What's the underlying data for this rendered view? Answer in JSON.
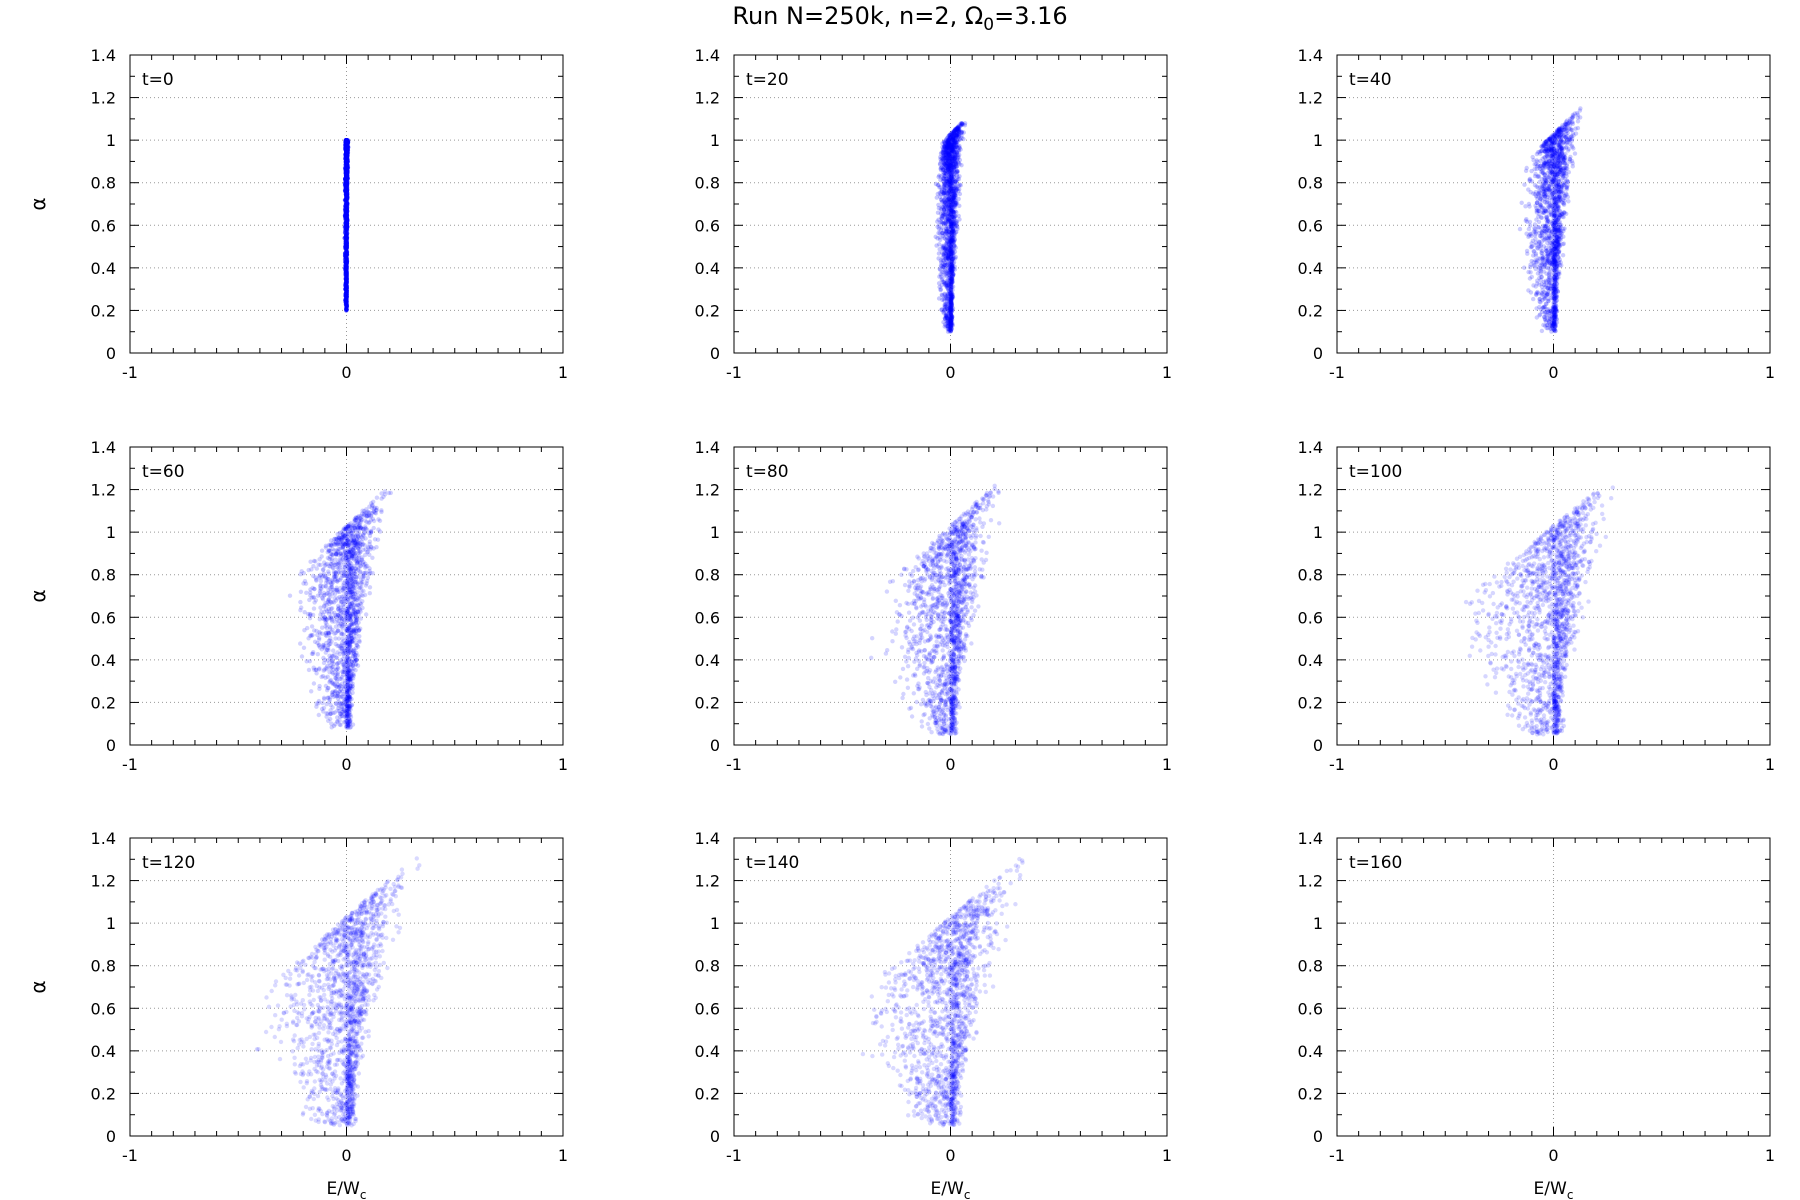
{
  "title": "Run N=250k, n=2, Ω₀=3.16",
  "title_parts": {
    "prefix": "Run N=250k, n=2, Ω",
    "sub": "0",
    "suffix": "=3.16"
  },
  "ylabel": "α",
  "xlabel": {
    "main": "E/W",
    "sub": "c"
  },
  "point_color": "#0000ff",
  "chart_data": [
    {
      "type": "scatter",
      "label": "t=0",
      "t": 0,
      "xlim": [
        -1,
        1
      ],
      "ylim": [
        0,
        1.4
      ],
      "x_ticks": [
        "-1",
        "0",
        "1"
      ],
      "y_ticks": [
        "0",
        "0.2",
        "0.4",
        "0.6",
        "0.8",
        "1",
        "1.2",
        "1.4"
      ],
      "grid": true,
      "spread_right": 0.01,
      "spread_left": 0.01,
      "alpha_min": 0.2,
      "alpha_max": 1.0,
      "n": 700,
      "opacity": 0.6
    },
    {
      "type": "scatter",
      "label": "t=20",
      "t": 20,
      "xlim": [
        -1,
        1
      ],
      "ylim": [
        0,
        1.4
      ],
      "x_ticks": [
        "-1",
        "0",
        "1"
      ],
      "y_ticks": [
        "0",
        "0.2",
        "0.4",
        "0.6",
        "0.8",
        "1",
        "1.2",
        "1.4"
      ],
      "grid": true,
      "spread_right": 0.08,
      "spread_left": 0.08,
      "alpha_min": 0.1,
      "alpha_max": 1.08,
      "n": 1600,
      "opacity": 0.22
    },
    {
      "type": "scatter",
      "label": "t=40",
      "t": 40,
      "xlim": [
        -1,
        1
      ],
      "ylim": [
        0,
        1.4
      ],
      "x_ticks": [
        "-1",
        "0",
        "1"
      ],
      "y_ticks": [
        "0",
        "0.2",
        "0.4",
        "0.6",
        "0.8",
        "1",
        "1.2",
        "1.4"
      ],
      "grid": true,
      "spread_right": 0.15,
      "spread_left": 0.17,
      "alpha_min": 0.1,
      "alpha_max": 1.15,
      "n": 1600,
      "opacity": 0.2
    },
    {
      "type": "scatter",
      "label": "t=60",
      "t": 60,
      "xlim": [
        -1,
        1
      ],
      "ylim": [
        0,
        1.4
      ],
      "x_ticks": [
        "-1",
        "0",
        "1"
      ],
      "y_ticks": [
        "0",
        "0.2",
        "0.4",
        "0.6",
        "0.8",
        "1",
        "1.2",
        "1.4"
      ],
      "grid": true,
      "spread_right": 0.23,
      "spread_left": 0.28,
      "alpha_min": 0.08,
      "alpha_max": 1.22,
      "n": 1600,
      "opacity": 0.18
    },
    {
      "type": "scatter",
      "label": "t=80",
      "t": 80,
      "xlim": [
        -1,
        1
      ],
      "ylim": [
        0,
        1.4
      ],
      "x_ticks": [
        "-1",
        "0",
        "1"
      ],
      "y_ticks": [
        "0",
        "0.2",
        "0.4",
        "0.6",
        "0.8",
        "1",
        "1.2",
        "1.4"
      ],
      "grid": true,
      "spread_right": 0.3,
      "spread_left": 0.4,
      "alpha_min": 0.05,
      "alpha_max": 1.28,
      "n": 1600,
      "opacity": 0.17
    },
    {
      "type": "scatter",
      "label": "t=100",
      "t": 100,
      "xlim": [
        -1,
        1
      ],
      "ylim": [
        0,
        1.4
      ],
      "x_ticks": [
        "-1",
        "0",
        "1"
      ],
      "y_ticks": [
        "0",
        "0.2",
        "0.4",
        "0.6",
        "0.8",
        "1",
        "1.2",
        "1.4"
      ],
      "grid": true,
      "spread_right": 0.36,
      "spread_left": 0.48,
      "alpha_min": 0.05,
      "alpha_max": 1.3,
      "n": 1600,
      "opacity": 0.16
    },
    {
      "type": "scatter",
      "label": "t=120",
      "t": 120,
      "xlim": [
        -1,
        1
      ],
      "ylim": [
        0,
        1.4
      ],
      "x_ticks": [
        "-1",
        "0",
        "1"
      ],
      "y_ticks": [
        "0",
        "0.2",
        "0.4",
        "0.6",
        "0.8",
        "1",
        "1.2",
        "1.4"
      ],
      "grid": true,
      "spread_right": 0.4,
      "spread_left": 0.48,
      "alpha_min": 0.05,
      "alpha_max": 1.36,
      "n": 1600,
      "opacity": 0.15
    },
    {
      "type": "scatter",
      "label": "t=140",
      "t": 140,
      "xlim": [
        -1,
        1
      ],
      "ylim": [
        0,
        1.4
      ],
      "x_ticks": [
        "-1",
        "0",
        "1"
      ],
      "y_ticks": [
        "0",
        "0.2",
        "0.4",
        "0.6",
        "0.8",
        "1",
        "1.2",
        "1.4"
      ],
      "grid": true,
      "spread_right": 0.42,
      "spread_left": 0.48,
      "alpha_min": 0.05,
      "alpha_max": 1.36,
      "n": 1600,
      "opacity": 0.15
    },
    {
      "type": "scatter",
      "label": "t=160",
      "t": 160,
      "xlim": [
        -1,
        1
      ],
      "ylim": [
        0,
        1.4
      ],
      "x_ticks": [
        "-1",
        "0",
        "1"
      ],
      "y_ticks": [
        "0",
        "0.2",
        "0.4",
        "0.6",
        "0.8",
        "1",
        "1.2",
        "1.4"
      ],
      "grid": true,
      "spread_right": 0,
      "spread_left": 0,
      "alpha_min": 0,
      "alpha_max": 0,
      "n": 0,
      "opacity": 0.15
    }
  ]
}
